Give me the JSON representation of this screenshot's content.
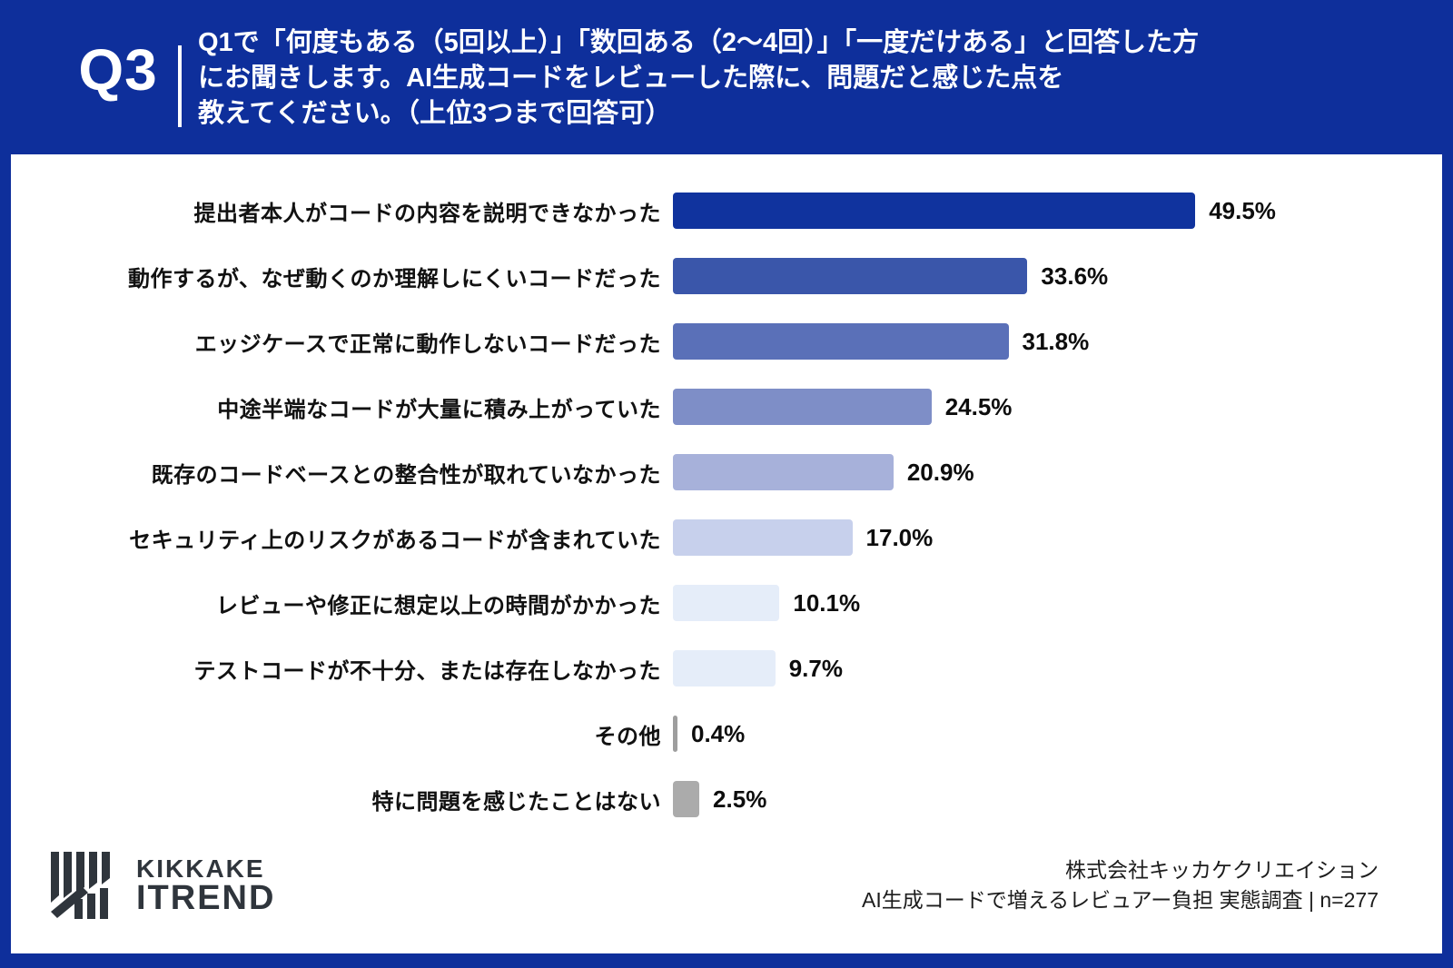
{
  "header": {
    "question_number": "Q3",
    "question_lines": [
      "Q1で「何度もある（5回以上）」「数回ある（2〜4回）」「一度だけある」と回答した方",
      "にお聞きします。AI生成コードをレビューした際に、問題だと感じた点を",
      "教えてください。（上位3つまで回答可）"
    ]
  },
  "chart_data": {
    "type": "bar",
    "orientation": "horizontal",
    "title": "",
    "xlabel": "",
    "ylabel": "",
    "xlim": [
      0,
      55
    ],
    "grid": false,
    "legend": "none",
    "categories": [
      "提出者本人がコードの内容を説明できなかった",
      "動作するが、なぜ動くのか理解しにくいコードだった",
      "エッジケースで正常に動作しないコードだった",
      "中途半端なコードが大量に積み上がっていた",
      "既存のコードベースとの整合性が取れていなかった",
      "セキュリティ上のリスクがあるコードが含まれていた",
      "レビューや修正に想定以上の時間がかかった",
      "テストコードが不十分、または存在しなかった",
      "その他",
      "特に問題を感じたことはない"
    ],
    "values": [
      49.5,
      33.6,
      31.8,
      24.5,
      20.9,
      17.0,
      10.1,
      9.7,
      0.4,
      2.5
    ],
    "value_labels": [
      "49.5%",
      "33.6%",
      "31.8%",
      "24.5%",
      "20.9%",
      "17.0%",
      "10.1%",
      "9.7%",
      "0.4%",
      "2.5%"
    ],
    "bar_colors": [
      "#10339e",
      "#3a56aa",
      "#5a70b8",
      "#7e8ec7",
      "#a7b1da",
      "#c7d0ec",
      "#e5edf9",
      "#e5edf9",
      "#9e9e9e",
      "#ababab"
    ]
  },
  "footer": {
    "logo_line1": "KIKKAKE",
    "logo_line2": "ITREND",
    "source_line1": "株式会社キッカケクリエイション",
    "source_line2": "AI生成コードで増えるレビュアー負担 実態調査 | n=277"
  },
  "colors": {
    "background": "#0e2f9b",
    "card": "#ffffff",
    "header_text": "#ffffff",
    "label_text": "#111111",
    "logo": "#2f353c"
  }
}
